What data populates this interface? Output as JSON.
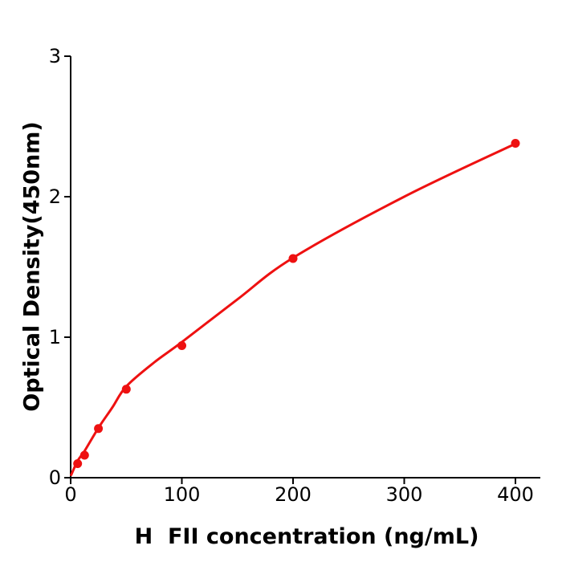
{
  "figure": {
    "background": "#ffffff",
    "axis_color": "#000000",
    "accent_red": "#ee1111"
  },
  "chart_data": {
    "type": "scatter",
    "title": "",
    "xlabel": "H  FII concentration (ng/mL)",
    "ylabel": "Optical Density(450nm)",
    "xlim": [
      0,
      422
    ],
    "ylim": [
      0,
      3
    ],
    "x_ticks": [
      0,
      100,
      200,
      300,
      400
    ],
    "y_ticks": [
      0,
      1,
      2,
      3
    ],
    "grid": false,
    "legend": "none",
    "series": [
      {
        "name": "standard-points",
        "type": "scatter",
        "color": "#ee1111",
        "marker_radius": 5.5,
        "x": [
          6.25,
          12.5,
          25,
          50,
          100,
          200,
          400
        ],
        "y": [
          0.1,
          0.16,
          0.35,
          0.63,
          0.94,
          1.56,
          2.38
        ]
      },
      {
        "name": "fitted-curve",
        "type": "line",
        "color": "#ee1111",
        "line_width": 3,
        "x": [
          0.5,
          6.25,
          12.5,
          25,
          37.5,
          50,
          75,
          100,
          150,
          200,
          300,
          400
        ],
        "y": [
          0.02,
          0.12,
          0.19,
          0.355,
          0.5,
          0.65,
          0.82,
          0.965,
          1.27,
          1.565,
          2.0,
          2.377
        ]
      }
    ]
  }
}
